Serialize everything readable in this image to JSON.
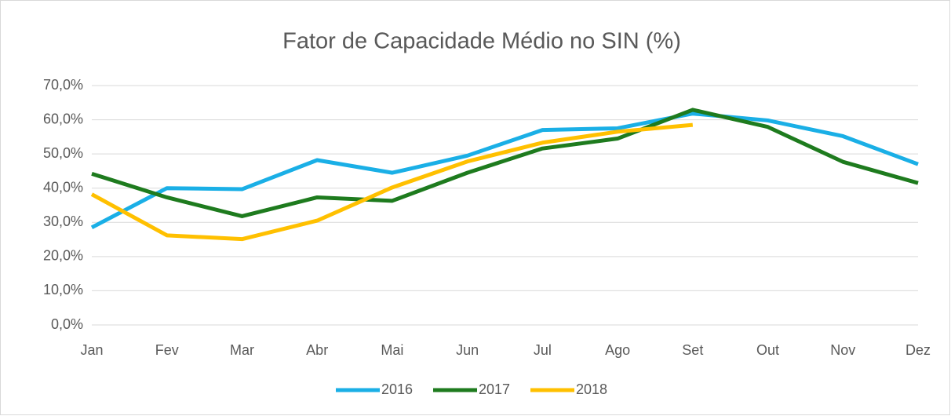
{
  "chart_data": {
    "type": "line",
    "title": "Fator de Capacidade Médio no SIN (%)",
    "categories": [
      "Jan",
      "Fev",
      "Mar",
      "Abr",
      "Mai",
      "Jun",
      "Jul",
      "Ago",
      "Set",
      "Out",
      "Nov",
      "Dez"
    ],
    "series": [
      {
        "name": "2016",
        "color": "#1aafe6",
        "values": [
          28.5,
          40.0,
          39.7,
          48.2,
          44.5,
          49.5,
          57.0,
          57.5,
          61.8,
          59.8,
          55.2,
          47.0
        ]
      },
      {
        "name": "2017",
        "color": "#1e7b1e",
        "values": [
          44.2,
          37.3,
          31.8,
          37.3,
          36.3,
          44.5,
          51.6,
          54.5,
          62.9,
          57.9,
          47.7,
          41.5
        ]
      },
      {
        "name": "2018",
        "color": "#ffc000",
        "values": [
          38.2,
          26.2,
          25.1,
          30.5,
          40.2,
          47.8,
          53.3,
          56.5,
          58.5,
          null,
          null,
          null
        ]
      }
    ],
    "ylim": [
      0,
      70
    ],
    "yticks": [
      {
        "value": 0,
        "label": "0,0%"
      },
      {
        "value": 10,
        "label": "10,0%"
      },
      {
        "value": 20,
        "label": "20,0%"
      },
      {
        "value": 30,
        "label": "30,0%"
      },
      {
        "value": 40,
        "label": "40,0%"
      },
      {
        "value": 50,
        "label": "50,0%"
      },
      {
        "value": 60,
        "label": "60,0%"
      },
      {
        "value": 70,
        "label": "70,0%"
      }
    ],
    "grid": true,
    "legend": "bottom"
  }
}
